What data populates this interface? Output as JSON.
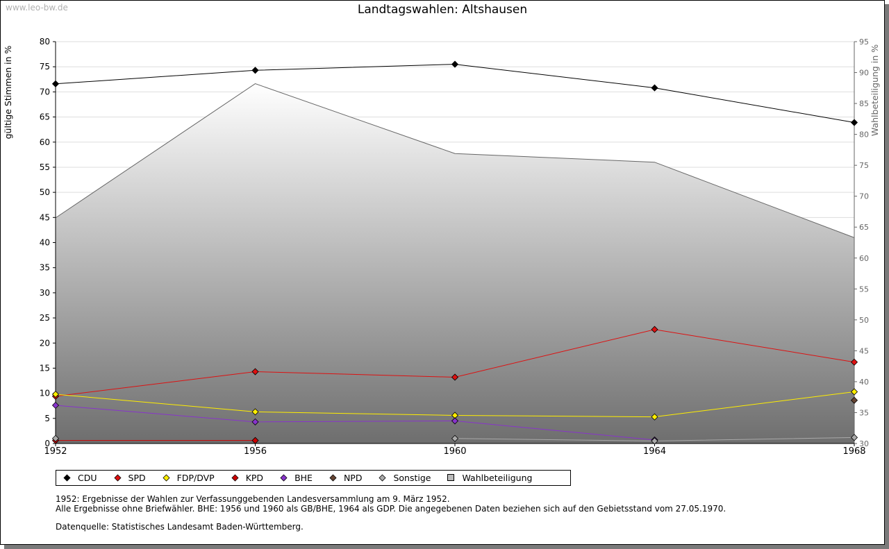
{
  "watermark": "www.leo-bw.de",
  "chart_data": {
    "type": "line",
    "title": "Landtagswahlen: Altshausen",
    "ylabel": "gültige Stimmen in %",
    "y2label": "Wahlbeteiligung in %",
    "ylim": [
      0,
      80
    ],
    "y2lim": [
      30,
      95
    ],
    "yticks": [
      "0",
      "5",
      "10",
      "15",
      "20",
      "25",
      "30",
      "35",
      "40",
      "45",
      "50",
      "55",
      "60",
      "65",
      "70",
      "75",
      "80"
    ],
    "y2ticks": [
      "30",
      "35",
      "40",
      "45",
      "50",
      "55",
      "60",
      "65",
      "70",
      "75",
      "80",
      "85",
      "90",
      "95"
    ],
    "x": [
      "1952",
      "1956",
      "1960",
      "1964",
      "1968"
    ],
    "series": [
      {
        "name": "CDU",
        "color": "#000000",
        "values": [
          71.6,
          74.3,
          75.5,
          70.8,
          63.9
        ]
      },
      {
        "name": "SPD",
        "color": "#dd1111",
        "values": [
          9.4,
          14.3,
          13.2,
          22.7,
          16.2
        ]
      },
      {
        "name": "FDP/DVP",
        "color": "#ffee00",
        "values": [
          9.8,
          6.3,
          5.6,
          5.3,
          10.3
        ]
      },
      {
        "name": "KPD",
        "color": "#cc0000",
        "values": [
          0.6,
          0.6,
          null,
          null,
          null
        ]
      },
      {
        "name": "BHE",
        "color": "#8833cc",
        "values": [
          7.6,
          4.3,
          4.5,
          0.7,
          null
        ]
      },
      {
        "name": "NPD",
        "color": "#664433",
        "values": [
          null,
          null,
          null,
          null,
          8.6
        ]
      },
      {
        "name": "Sonstige",
        "color": "#aaaaaa",
        "values": [
          1.0,
          null,
          1.0,
          0.5,
          1.2
        ]
      },
      {
        "name": "Wahlbeteiligung",
        "color": "#bbbbbb",
        "axis": "right",
        "values": [
          66.5,
          88.2,
          76.9,
          75.5,
          63.3
        ]
      }
    ],
    "legend": [
      "CDU",
      "SPD",
      "FDP/DVP",
      "KPD",
      "BHE",
      "NPD",
      "Sonstige",
      "Wahlbeteiligung"
    ]
  },
  "notes": {
    "line1": "1952: Ergebnisse der Wahlen zur Verfassunggebenden Landesversammlung am 9. März 1952.",
    "line2": "Alle Ergebnisse ohne Briefwähler. BHE: 1956 und 1960 als GB/BHE, 1964 als GDP. Die angegebenen Daten beziehen sich auf den Gebietsstand vom 27.05.1970.",
    "source": "Datenquelle: Statistisches Landesamt Baden-Württemberg."
  }
}
